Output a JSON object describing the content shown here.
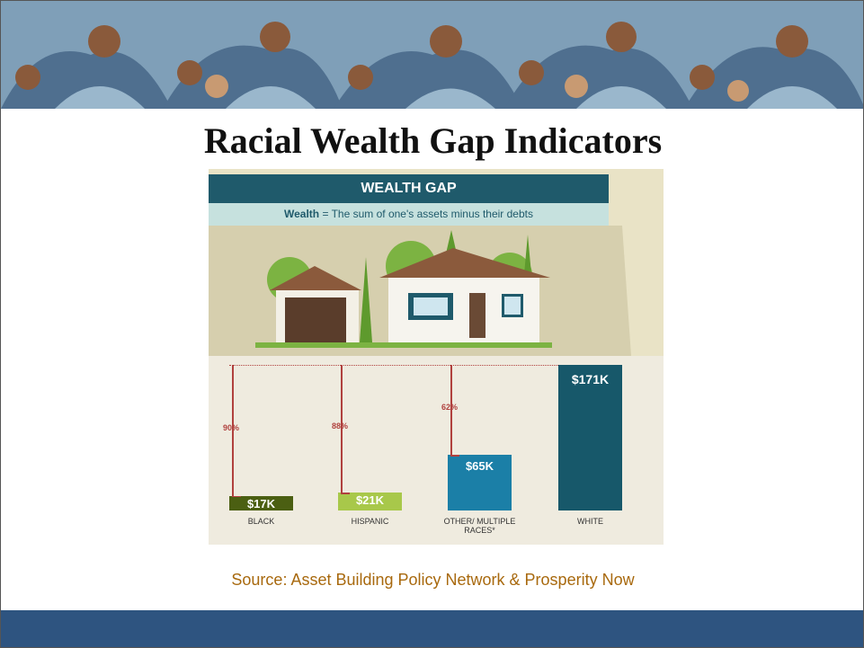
{
  "slide_title": "Racial Wealth Gap Indicators",
  "source": "Source:  Asset Building Policy Network & Prosperity Now",
  "chart_data": {
    "type": "bar",
    "title": "WEALTH GAP",
    "subtitle_term": "Wealth",
    "subtitle": "= The sum of one's assets minus their debts",
    "categories": [
      "BLACK",
      "HISPANIC",
      "OTHER/ MULTIPLE RACES*",
      "WHITE"
    ],
    "values": [
      17,
      21,
      65,
      171
    ],
    "value_labels": [
      "$17K",
      "$21K",
      "$65K",
      "$171K"
    ],
    "colors": [
      "#4b5f12",
      "#a8c84a",
      "#1b7fa7",
      "#17586a"
    ],
    "gaps": [
      90,
      88,
      62
    ],
    "gap_labels": [
      "90%",
      "88%",
      "62%"
    ],
    "gap_color": "#b0413e"
  }
}
